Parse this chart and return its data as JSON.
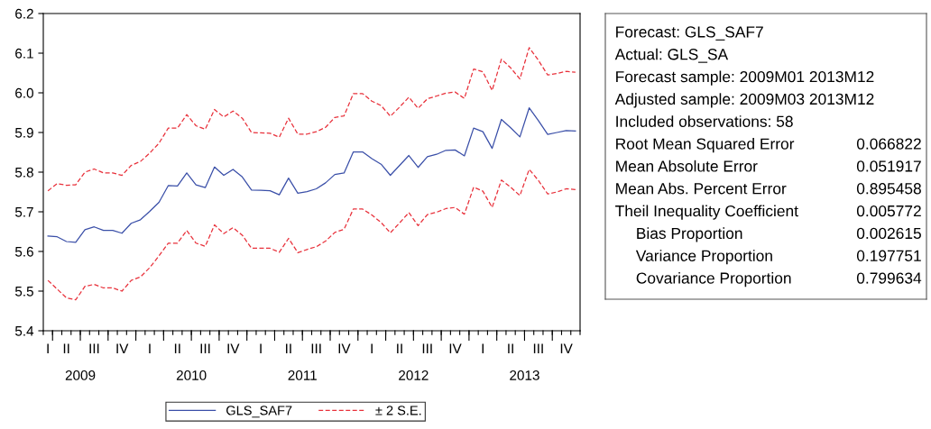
{
  "chart_data": [
    {
      "type": "line",
      "categories": [
        "I",
        null,
        "II",
        null,
        null,
        "III",
        null,
        null,
        "IV",
        null,
        null,
        "I",
        null,
        null,
        "II",
        null,
        null,
        "III",
        null,
        null,
        "IV",
        null,
        null,
        "I",
        null,
        null,
        "II",
        null,
        null,
        "III",
        null,
        null,
        "IV",
        null,
        null,
        "I",
        null,
        null,
        "II",
        null,
        null,
        "III",
        null,
        null,
        "IV",
        null,
        null,
        "I",
        null,
        null,
        "II",
        null,
        null,
        "III",
        null,
        null,
        "IV",
        null
      ],
      "x2lim": [
        2008.6667,
        2013.5
      ],
      "x2ticks": [
        2009,
        2010,
        2011,
        2012,
        2013
      ],
      "ylim": [
        5.4,
        6.2
      ],
      "yticks": [
        5.4,
        5.5,
        5.6,
        5.7,
        5.8,
        5.9,
        {
          "value": 6,
          "label": "6.0"
        },
        6.1,
        6.2
      ],
      "legend": "bottom",
      "series": [
        {
          "name": "GLS_SAF7",
          "color": "#3a4fa8",
          "line_style": "solid",
          "values": [
            5.639,
            5.637,
            5.625,
            5.623,
            5.655,
            5.662,
            5.653,
            5.653,
            5.646,
            5.671,
            5.68,
            5.701,
            5.724,
            5.766,
            5.765,
            5.798,
            5.768,
            5.761,
            5.813,
            5.792,
            5.807,
            5.788,
            5.755,
            5.754,
            5.753,
            5.743,
            5.785,
            5.747,
            5.751,
            5.758,
            5.773,
            5.794,
            5.798,
            5.851,
            5.851,
            5.834,
            5.82,
            5.792,
            5.817,
            5.842,
            5.812,
            5.839,
            5.845,
            5.855,
            5.856,
            5.841,
            5.911,
            5.902,
            5.86,
            5.933,
            5.912,
            5.889,
            5.962,
            5.93,
            5.895,
            5.9,
            5.905,
            5.904
          ]
        },
        {
          "name": "± 2 S.E.",
          "color": "#e8303a",
          "line_style": "dashed",
          "values": [
            5.753,
            5.771,
            5.767,
            5.768,
            5.8,
            5.808,
            5.798,
            5.798,
            5.792,
            5.817,
            5.827,
            5.848,
            5.873,
            5.911,
            5.911,
            5.945,
            5.917,
            5.908,
            5.958,
            5.939,
            5.954,
            5.936,
            5.9,
            5.899,
            5.898,
            5.888,
            5.936,
            5.896,
            5.896,
            5.902,
            5.913,
            5.938,
            5.942,
            5.998,
            5.998,
            5.979,
            5.968,
            5.941,
            5.964,
            5.989,
            5.961,
            5.985,
            5.992,
            5.999,
            6.002,
            5.986,
            6.06,
            6.053,
            6.006,
            6.085,
            6.063,
            6.035,
            6.114,
            6.082,
            6.045,
            6.049,
            6.054,
            6.052
          ]
        },
        {
          "color": "#e8303a",
          "line_style": "dashed",
          "values": [
            5.527,
            5.505,
            5.483,
            5.478,
            5.512,
            5.517,
            5.508,
            5.508,
            5.5,
            5.527,
            5.536,
            5.559,
            5.589,
            5.621,
            5.621,
            5.653,
            5.621,
            5.613,
            5.667,
            5.645,
            5.66,
            5.641,
            5.608,
            5.608,
            5.608,
            5.598,
            5.633,
            5.597,
            5.605,
            5.612,
            5.626,
            5.648,
            5.656,
            5.707,
            5.707,
            5.692,
            5.673,
            5.647,
            5.672,
            5.698,
            5.665,
            5.693,
            5.699,
            5.708,
            5.711,
            5.694,
            5.762,
            5.752,
            5.711,
            5.78,
            5.762,
            5.741,
            5.807,
            5.779,
            5.745,
            5.75,
            5.758,
            5.756
          ]
        }
      ]
    },
    {
      "type": "other",
      "annotations": [
        "Forecast: GLS_SAF7",
        "Actual: GLS_SA",
        "Forecast sample: 2009M01 2013M12",
        "Adjusted sample: 2009M03 2013M12",
        "Included observations: 58"
      ],
      "categories": [
        "Root Mean Squared Error",
        "Mean Absolute Error",
        "Mean Abs. Percent Error",
        "Theil Inequality Coefficient",
        "Bias Proportion",
        "Variance Proportion",
        "Covariance Proportion"
      ],
      "values": [
        0.066822,
        0.051917,
        0.895458,
        0.005772,
        0.002615,
        0.197751,
        0.799634
      ],
      "data_labels": true
    }
  ]
}
